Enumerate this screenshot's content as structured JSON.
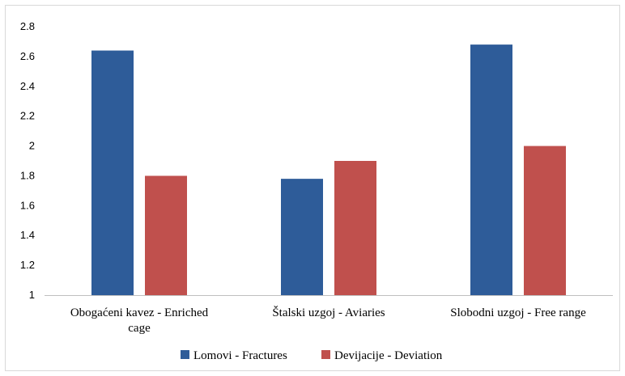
{
  "chart_data": {
    "type": "bar",
    "title": "",
    "xlabel": "",
    "ylabel": "",
    "categories": [
      [
        "Obogaćeni kavez - Enriched",
        "cage"
      ],
      [
        "Štalski uzgoj - Aviaries"
      ],
      [
        "Slobodni uzgoj - Free range"
      ]
    ],
    "series": [
      {
        "name": "Lomovi - Fractures",
        "color": "#2e5c99",
        "values": [
          2.64,
          1.78,
          2.68
        ]
      },
      {
        "name": "Devijacije - Deviation",
        "color": "#c0504d",
        "values": [
          1.8,
          1.9,
          2.0
        ]
      }
    ],
    "ylim": [
      1,
      2.8
    ],
    "yticks": [
      "1",
      "1.2",
      "1.4",
      "1.6",
      "1.8",
      "2",
      "2.2",
      "2.4",
      "2.6",
      "2.8"
    ],
    "grid": false,
    "legend": "bottom"
  }
}
